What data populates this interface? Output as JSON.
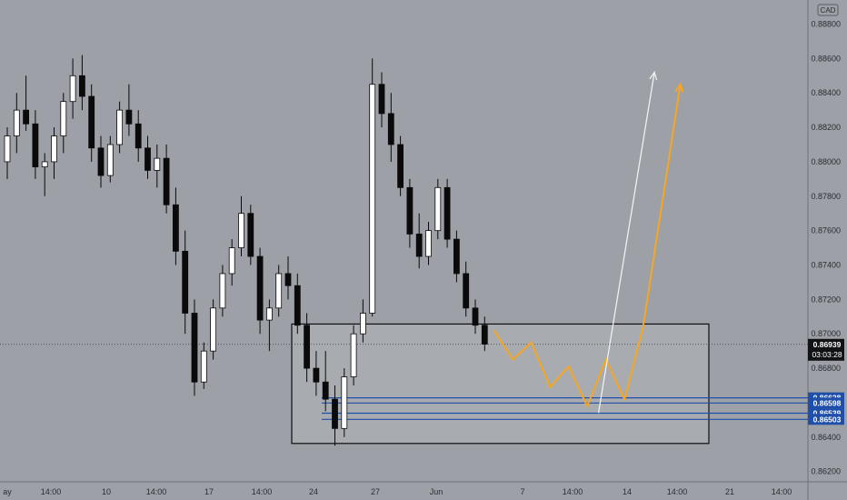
{
  "chart_data": {
    "type": "candlestick",
    "currency_badge": "CAD",
    "ylim": [
      0.8614,
      0.8894
    ],
    "y_ticks": [
      "0.88800",
      "0.88600",
      "0.88400",
      "0.88200",
      "0.88000",
      "0.87800",
      "0.87600",
      "0.87400",
      "0.87200",
      "0.87000",
      "0.86800",
      "0.86600",
      "0.86400",
      "0.86200"
    ],
    "x_ticks": [
      "ay",
      "14:00",
      "10",
      "14:00",
      "17",
      "14:00",
      "24",
      "27",
      "Jun",
      "7",
      "14:00",
      "14",
      "14:00",
      "21",
      "14:00"
    ],
    "current_price": {
      "value": "0.86939",
      "countdown": "03:03:28",
      "price": 0.86939
    },
    "support_levels": [
      {
        "label": "0.86628",
        "price": 0.86628
      },
      {
        "label": "0.86598",
        "price": 0.86598
      },
      {
        "label": "0.86539",
        "price": 0.86539
      },
      {
        "label": "0.86503",
        "price": 0.86503
      }
    ],
    "demand_zone": {
      "top": 0.87057,
      "bottom": 0.86363
    },
    "ohlc": [
      [
        0.88,
        0.882,
        0.879,
        0.8815
      ],
      [
        0.8815,
        0.884,
        0.8805,
        0.883
      ],
      [
        0.883,
        0.885,
        0.8818,
        0.8822
      ],
      [
        0.8822,
        0.883,
        0.879,
        0.8797
      ],
      [
        0.8797,
        0.8805,
        0.878,
        0.88
      ],
      [
        0.88,
        0.882,
        0.879,
        0.8815
      ],
      [
        0.8815,
        0.884,
        0.8805,
        0.8835
      ],
      [
        0.8835,
        0.886,
        0.8825,
        0.885
      ],
      [
        0.885,
        0.8862,
        0.883,
        0.8838
      ],
      [
        0.8838,
        0.8845,
        0.88,
        0.8808
      ],
      [
        0.8808,
        0.8815,
        0.8785,
        0.8792
      ],
      [
        0.8792,
        0.8815,
        0.8788,
        0.881
      ],
      [
        0.881,
        0.8835,
        0.8805,
        0.883
      ],
      [
        0.883,
        0.8845,
        0.8815,
        0.8822
      ],
      [
        0.8822,
        0.883,
        0.88,
        0.8808
      ],
      [
        0.8808,
        0.8815,
        0.879,
        0.8795
      ],
      [
        0.8795,
        0.881,
        0.8785,
        0.8802
      ],
      [
        0.8802,
        0.881,
        0.877,
        0.8775
      ],
      [
        0.8775,
        0.8785,
        0.874,
        0.8748
      ],
      [
        0.8748,
        0.876,
        0.87,
        0.8712
      ],
      [
        0.8712,
        0.872,
        0.8664,
        0.8672
      ],
      [
        0.8672,
        0.8695,
        0.8668,
        0.869
      ],
      [
        0.869,
        0.872,
        0.8685,
        0.8715
      ],
      [
        0.8715,
        0.874,
        0.871,
        0.8735
      ],
      [
        0.8735,
        0.8755,
        0.8728,
        0.875
      ],
      [
        0.875,
        0.878,
        0.8745,
        0.877
      ],
      [
        0.877,
        0.8775,
        0.874,
        0.8745
      ],
      [
        0.8745,
        0.875,
        0.87,
        0.8708
      ],
      [
        0.8708,
        0.872,
        0.869,
        0.8715
      ],
      [
        0.8715,
        0.874,
        0.871,
        0.8735
      ],
      [
        0.8735,
        0.8745,
        0.872,
        0.8728
      ],
      [
        0.8728,
        0.8735,
        0.87,
        0.8705
      ],
      [
        0.8705,
        0.8712,
        0.8672,
        0.868
      ],
      [
        0.868,
        0.869,
        0.8664,
        0.8672
      ],
      [
        0.8672,
        0.869,
        0.8655,
        0.8662
      ],
      [
        0.8662,
        0.867,
        0.8635,
        0.8645
      ],
      [
        0.8645,
        0.868,
        0.864,
        0.8675
      ],
      [
        0.8675,
        0.8705,
        0.867,
        0.87
      ],
      [
        0.87,
        0.872,
        0.8695,
        0.8712
      ],
      [
        0.8712,
        0.886,
        0.871,
        0.8845
      ],
      [
        0.8845,
        0.8852,
        0.882,
        0.8828
      ],
      [
        0.8828,
        0.884,
        0.88,
        0.881
      ],
      [
        0.881,
        0.8815,
        0.878,
        0.8785
      ],
      [
        0.8785,
        0.879,
        0.875,
        0.8758
      ],
      [
        0.8758,
        0.877,
        0.8738,
        0.8745
      ],
      [
        0.8745,
        0.8765,
        0.874,
        0.876
      ],
      [
        0.876,
        0.879,
        0.8755,
        0.8785
      ],
      [
        0.8785,
        0.879,
        0.875,
        0.8755
      ],
      [
        0.8755,
        0.876,
        0.873,
        0.8735
      ],
      [
        0.8735,
        0.8742,
        0.871,
        0.8715
      ],
      [
        0.8715,
        0.872,
        0.87,
        0.8705
      ],
      [
        0.8705,
        0.871,
        0.869,
        0.8694
      ]
    ],
    "projections": [
      {
        "name": "orange-path",
        "color": "#f5a623",
        "points": [
          [
            0,
            0.8702
          ],
          [
            1,
            0.8685
          ],
          [
            2,
            0.8695
          ],
          [
            3,
            0.8669
          ],
          [
            4,
            0.8681
          ],
          [
            5,
            0.8658
          ],
          [
            6,
            0.8685
          ],
          [
            7,
            0.8662
          ],
          [
            8,
            0.8704
          ],
          [
            10,
            0.8845
          ]
        ]
      },
      {
        "name": "white-path",
        "color": "#f0f0f0",
        "points": [
          [
            0,
            0.8654
          ],
          [
            3,
            0.8852
          ]
        ]
      }
    ]
  }
}
